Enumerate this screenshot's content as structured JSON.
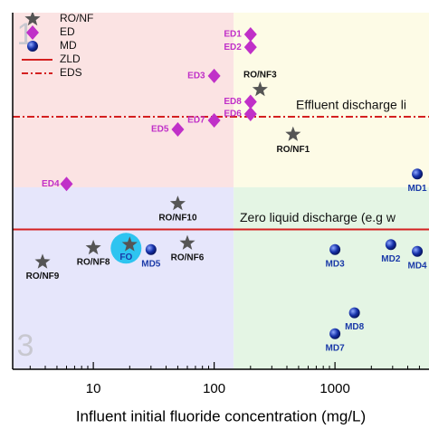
{
  "chart_data": {
    "type": "scatter",
    "x_label": "Influent initial fluoride concentration (mg/L)",
    "xlog": true,
    "ylog": true,
    "xlim": [
      2.15,
      6000
    ],
    "ylim": [
      0.1,
      1000
    ],
    "xticks": [
      10,
      100,
      1000
    ],
    "regions": {
      "x_split": 145,
      "y_split": 11,
      "colors": [
        "#fbe3e3",
        "#fdfbe6",
        "#e6e6fb",
        "#e4f5e4"
      ],
      "labels": [
        "1",
        "3"
      ]
    },
    "series": [
      {
        "name": "RO/NF",
        "marker": "star",
        "color": "#555555",
        "label_color": "#111111",
        "x": [
          240,
          450,
          50,
          10,
          3.8,
          60,
          20
        ],
        "values": [
          137,
          43,
          7.2,
          2.3,
          1.6,
          2.6,
          2.5
        ],
        "point_labels": [
          "RO/NF3",
          "RO/NF1",
          "RO/NF10",
          "RO/NF8",
          "RO/NF9",
          "RO/NF6",
          null
        ]
      },
      {
        "name": "ED",
        "marker": "diamond",
        "color": "#c030c8",
        "label_color": "#c030c8",
        "x": [
          200,
          200,
          100,
          200,
          200,
          100,
          50,
          6
        ],
        "values": [
          570,
          410,
          195,
          100,
          73,
          62,
          49,
          12
        ],
        "point_labels": [
          "ED1",
          "ED2",
          "ED3",
          "ED8",
          "ED6",
          "ED7",
          "ED5",
          "ED4"
        ]
      },
      {
        "name": "MD",
        "marker": "sphere",
        "color": "#1530a8",
        "label_color": "#1a3aa8",
        "x": [
          30,
          1000,
          2900,
          4800,
          4800,
          1450,
          1000
        ],
        "values": [
          2.2,
          2.2,
          2.5,
          2.1,
          15.5,
          0.43,
          0.25
        ],
        "point_labels": [
          "MD5",
          "MD3",
          "MD2",
          "MD4",
          "MD1",
          "MD8",
          "MD7"
        ]
      }
    ],
    "reference_lines": [
      {
        "name": "ZLD",
        "value": 3.7,
        "style": "solid",
        "color": "#d42020",
        "text": "Zero liquid discharge (e.g w"
      },
      {
        "name": "EDS",
        "value": 68,
        "style": "dashdot",
        "color": "#d42020",
        "text": "Effluent discharge li"
      }
    ],
    "highlight": {
      "label": "FO",
      "x": 20,
      "y": 2.5,
      "color": "#2ec4f0"
    }
  }
}
